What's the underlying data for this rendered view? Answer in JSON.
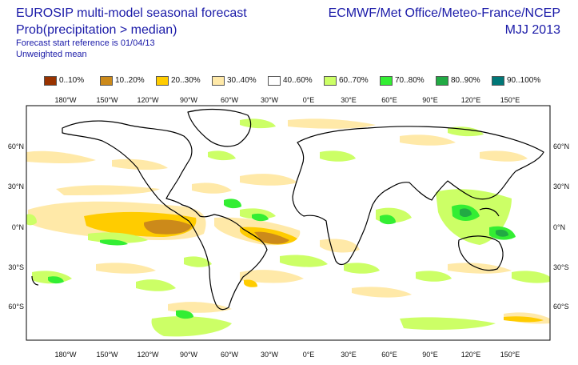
{
  "header": {
    "title_line1": "EUROSIP multi-model seasonal forecast",
    "title_line2": "Prob(precipitation > median)",
    "title_line3": "Forecast start reference is 01/04/13",
    "title_line4": "Unweighted mean",
    "right_line1": "ECMWF/Met Office/Meteo-France/NCEP",
    "right_line2": "MJJ 2013"
  },
  "legend": [
    {
      "label": "0..10%",
      "color": "#993300"
    },
    {
      "label": "10..20%",
      "color": "#cc8a1a"
    },
    {
      "label": "20..30%",
      "color": "#ffcc00"
    },
    {
      "label": "30..40%",
      "color": "#ffe9a8"
    },
    {
      "label": "40..60%",
      "color": "#ffffff"
    },
    {
      "label": "60..70%",
      "color": "#ccff66"
    },
    {
      "label": "70..80%",
      "color": "#33ee33"
    },
    {
      "label": "80..90%",
      "color": "#22aa44"
    },
    {
      "label": "90..100%",
      "color": "#007777"
    }
  ],
  "axes": {
    "lon_labels": [
      "180°W",
      "150°W",
      "120°W",
      "90°W",
      "60°W",
      "30°W",
      "0°E",
      "30°E",
      "60°E",
      "90°E",
      "120°E",
      "150°E"
    ],
    "lat_labels": [
      "60°N",
      "30°N",
      "0°N",
      "30°S",
      "60°S"
    ]
  }
}
